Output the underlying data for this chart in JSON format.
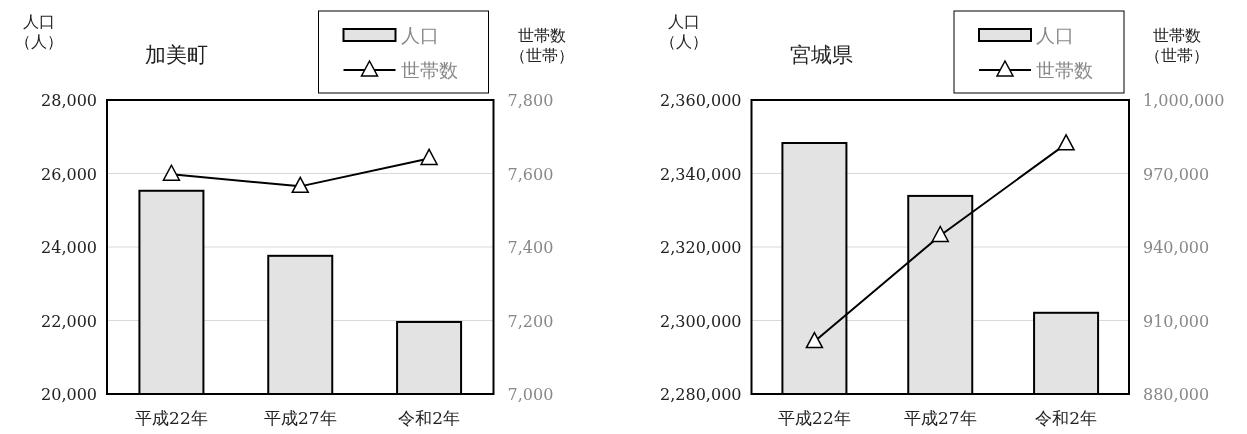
{
  "chart_data": [
    {
      "type": "bar",
      "title": "加美町",
      "ylabel": "人口（人）",
      "y2label": "世帯数（世帯）",
      "categories": [
        "平成22年",
        "平成27年",
        "令和2年"
      ],
      "series": [
        {
          "name": "人口",
          "color": "#e3e3e3",
          "values": [
            25530,
            23760,
            21960
          ]
        },
        {
          "name": "世帯数",
          "type": "line",
          "axis": "y2",
          "color": "#000000",
          "values": [
            7598,
            7565,
            7641
          ]
        }
      ],
      "ylim": [
        20000,
        28000
      ],
      "yticks": [
        {
          "value": 20000,
          "label": "20,000"
        },
        {
          "value": 22000,
          "label": "22,000"
        },
        {
          "value": 24000,
          "label": "24,000"
        },
        {
          "value": 26000,
          "label": "26,000"
        },
        {
          "value": 28000,
          "label": "28,000"
        }
      ],
      "y2lim": [
        7000,
        7800
      ],
      "y2ticks": [
        {
          "value": 7000,
          "label": "7,000"
        },
        {
          "value": 7200,
          "label": "7,200"
        },
        {
          "value": 7400,
          "label": "7,400"
        },
        {
          "value": 7600,
          "label": "7,600"
        },
        {
          "value": 7800,
          "label": "7,800"
        }
      ],
      "grid": "y",
      "legend": "top right",
      "marker": "triangle",
      "line_style": "solid"
    },
    {
      "type": "bar",
      "title": "宮城県",
      "ylabel": "人口（人）",
      "y2label": "世帯数（世帯）",
      "categories": [
        "平成22年",
        "平成27年",
        "令和2年"
      ],
      "series": [
        {
          "name": "人口",
          "color": "#e3e3e3",
          "values": [
            2348300,
            2333900,
            2302100
          ]
        },
        {
          "name": "世帯数",
          "type": "line",
          "axis": "y2",
          "color": "#000000",
          "values": [
            901400,
            944700,
            982100
          ]
        }
      ],
      "ylim": [
        2280000,
        2360000
      ],
      "yticks": [
        {
          "value": 2280000,
          "label": "2,280,000"
        },
        {
          "value": 2300000,
          "label": "2,300,000"
        },
        {
          "value": 2320000,
          "label": "2,320,000"
        },
        {
          "value": 2340000,
          "label": "2,340,000"
        },
        {
          "value": 2360000,
          "label": "2,360,000"
        }
      ],
      "y2lim": [
        880000,
        1000000
      ],
      "y2ticks": [
        {
          "value": 880000,
          "label": "880,000"
        },
        {
          "value": 910000,
          "label": "910,000"
        },
        {
          "value": 940000,
          "label": "940,000"
        },
        {
          "value": 970000,
          "label": "970,000"
        },
        {
          "value": 1000000,
          "label": "1,000,000"
        }
      ],
      "grid": "y",
      "legend": "top right",
      "marker": "triangle",
      "line_style": "solid"
    }
  ]
}
